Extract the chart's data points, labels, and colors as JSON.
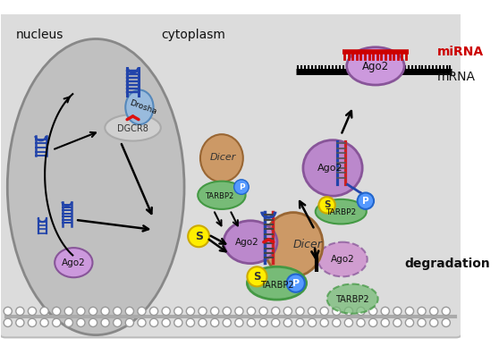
{
  "nucleus_label": "nucleus",
  "cytoplasm_label": "cytoplasm",
  "miRNA_label": "miRNA",
  "mRNA_label": "mRNA",
  "degradation_label": "degradation",
  "figsize": [
    5.58,
    3.97
  ],
  "dpi": 100,
  "colors": {
    "bg": "#e8e8e8",
    "nucleus_fill": "#c8c8c8",
    "nucleus_edge": "#999999",
    "cell_fill": "#d8d8d8",
    "DGCR8_fill": "#d0d0d0",
    "DGCR8_edge": "#aaaaaa",
    "Drosha_fill": "#99bbdd",
    "Drosha_edge": "#5588bb",
    "Dicer_fill": "#cc9966",
    "Dicer_edge": "#996633",
    "TARBP2_fill": "#77bb77",
    "TARBP2_edge": "#449944",
    "Ago2_fill": "#bb88cc",
    "Ago2_edge": "#885599",
    "Ago2_bright": "#cc99dd",
    "S_fill": "#ffee00",
    "S_edge": "#ccaa00",
    "P_fill": "#5599ff",
    "P_edge": "#2266cc",
    "RNA_blue": "#2244aa",
    "RNA_red": "#cc2222",
    "arrow": "#111111",
    "membrane": "#aaaaaa",
    "membrane_circle": "#ffffff",
    "text_dark": "#222222",
    "miRNA_color": "#cc0000"
  }
}
